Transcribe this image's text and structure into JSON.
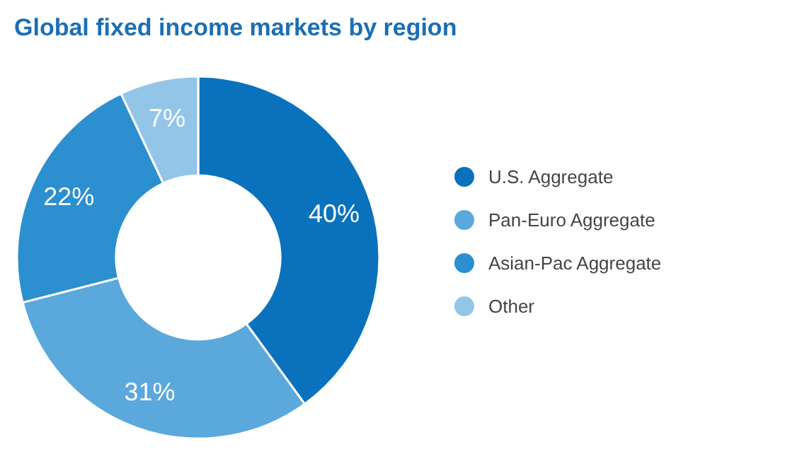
{
  "chart_data": {
    "type": "donut",
    "title": "Global fixed income markets by region",
    "categories": [
      "U.S. Aggregate",
      "Pan-Euro Aggregate",
      "Asian-Pac Aggregate",
      "Other"
    ],
    "values": [
      40,
      31,
      22,
      7
    ],
    "colors": [
      "#0a72bd",
      "#5aa8dc",
      "#2b8fd0",
      "#93c5e9"
    ],
    "value_labels": [
      "40%",
      "31%",
      "22%",
      "7%"
    ],
    "legend": "right"
  }
}
